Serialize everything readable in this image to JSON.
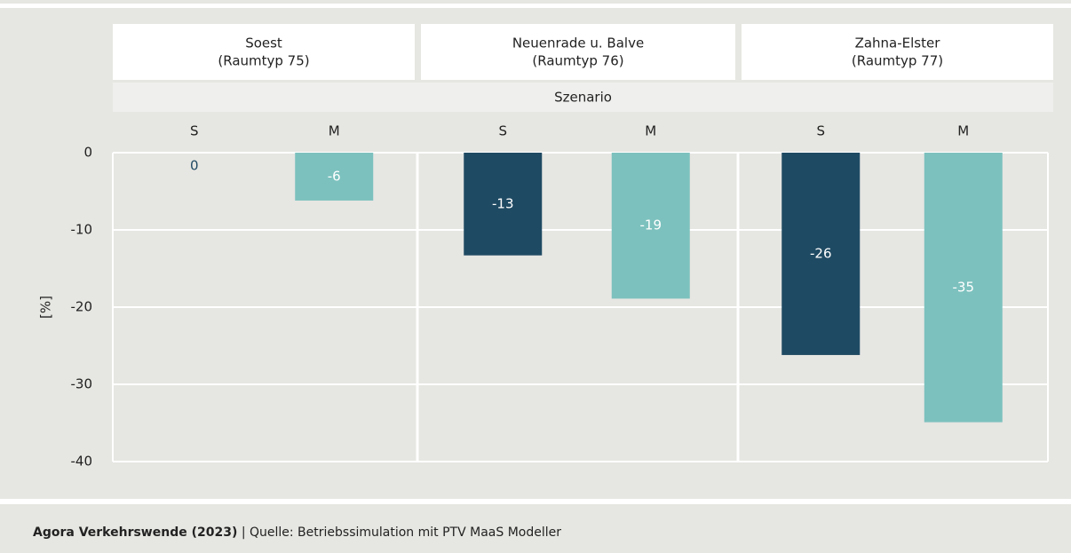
{
  "chart_data": {
    "type": "bar",
    "y_label": "[%]",
    "x_label": "Szenario",
    "ylim": [
      -40,
      0
    ],
    "yticks": [
      0,
      -10,
      -20,
      -30,
      -40
    ],
    "grid": true,
    "colors": [
      "#1f4a63",
      "#7cc1be"
    ],
    "facets": [
      {
        "title": [
          "Soest",
          "(Raumtyp 75)"
        ],
        "categories": [
          "S",
          "M"
        ],
        "values": [
          0,
          -6.2
        ],
        "value_labels": [
          "0",
          "-6"
        ]
      },
      {
        "title": [
          "Neuenrade u. Balve",
          "(Raumtyp 76)"
        ],
        "categories": [
          "S",
          "M"
        ],
        "values": [
          -13.3,
          -18.9
        ],
        "value_labels": [
          "-13",
          "-19"
        ]
      },
      {
        "title": [
          "Zahna-Elster",
          "(Raumtyp 77)"
        ],
        "categories": [
          "S",
          "M"
        ],
        "values": [
          -26.2,
          -34.9
        ],
        "value_labels": [
          "-26",
          "-35"
        ]
      }
    ]
  },
  "footer": {
    "author": "Agora Verkehrswende (2023)",
    "separator": "|",
    "source": "Quelle: Betriebssimulation mit PTV MaaS Modeller"
  }
}
